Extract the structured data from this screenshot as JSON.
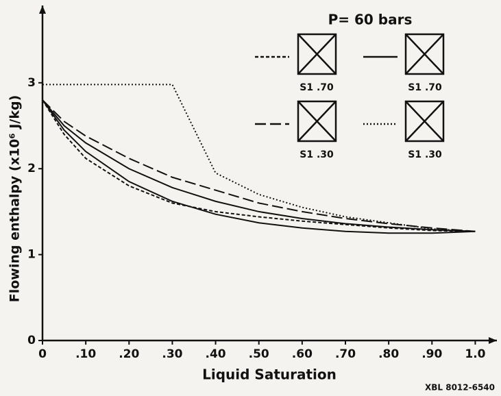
{
  "chart_data": {
    "type": "line",
    "title": "P= 60 bars",
    "x_label": "Liquid Saturation",
    "y_label": "Flowing enthalpy (x10⁶ J/kg)",
    "annotation": "XBL 8012-6540",
    "x": [
      0,
      0.05,
      0.1,
      0.2,
      0.3,
      0.4,
      0.5,
      0.6,
      0.7,
      0.8,
      0.9,
      1.0
    ],
    "series": [
      {
        "name": "S1 .70",
        "color": "#111111",
        "style": "dashed",
        "values": [
          2.8,
          2.4,
          2.12,
          1.8,
          1.6,
          1.5,
          1.44,
          1.39,
          1.35,
          1.31,
          1.28,
          1.27
        ]
      },
      {
        "name": "S1 .70",
        "color": "#111111",
        "style": "solid",
        "values": [
          2.8,
          2.5,
          2.3,
          2.0,
          1.78,
          1.62,
          1.5,
          1.42,
          1.36,
          1.32,
          1.29,
          1.27
        ]
      },
      {
        "name": "S1 .30",
        "color": "#111111",
        "style": "longdash",
        "values": [
          2.8,
          2.55,
          2.38,
          2.12,
          1.9,
          1.75,
          1.6,
          1.5,
          1.42,
          1.36,
          1.31,
          1.27
        ]
      },
      {
        "name": "S1 .30",
        "color": "#111111",
        "style": "dotted",
        "values": [
          2.98,
          2.98,
          2.98,
          2.98,
          2.98,
          1.95,
          1.7,
          1.55,
          1.44,
          1.37,
          1.3,
          1.27
        ]
      },
      {
        "color": "#111111",
        "style": "solid",
        "values": [
          2.8,
          2.45,
          2.2,
          1.85,
          1.62,
          1.47,
          1.37,
          1.31,
          1.27,
          1.25,
          1.25,
          1.27
        ]
      }
    ],
    "xlim": [
      0,
      1.05
    ],
    "ylim": [
      0,
      3.9
    ],
    "xticks": [
      0,
      {
        "value": 0.1,
        "label": ".10"
      },
      {
        "value": 0.2,
        "label": ".20"
      },
      {
        "value": 0.3,
        "label": ".30"
      },
      {
        "value": 0.4,
        "label": ".40"
      },
      {
        "value": 0.5,
        "label": ".50"
      },
      {
        "value": 0.6,
        "label": ".60"
      },
      {
        "value": 0.7,
        "label": ".70"
      },
      {
        "value": 0.8,
        "label": ".80"
      },
      {
        "value": 0.9,
        "label": ".90"
      },
      {
        "value": 1.0,
        "label": "1.0"
      }
    ],
    "yticks": [
      0,
      1,
      2,
      3
    ],
    "grid": false
  }
}
